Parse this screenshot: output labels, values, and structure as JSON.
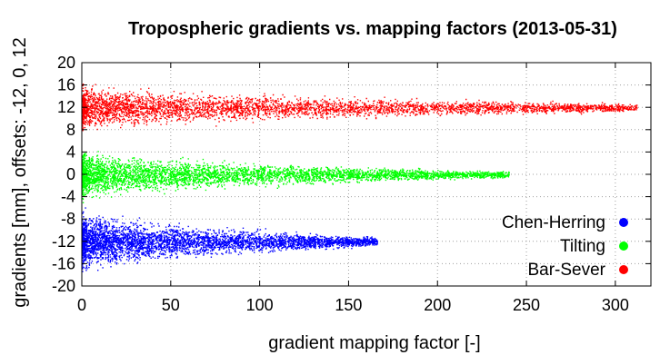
{
  "chart_data": {
    "type": "scatter",
    "title": "Tropospheric gradients vs. mapping factors (2013-05-31)",
    "xlabel": "gradient mapping factor [-]",
    "ylabel": "gradients [mm], offsets: -12, 0, 12",
    "xlim": [
      0,
      320
    ],
    "ylim": [
      -20,
      20
    ],
    "xticks": [
      "0",
      "50",
      "100",
      "150",
      "200",
      "250",
      "300"
    ],
    "yticks": [
      "20",
      "16",
      "12",
      "8",
      "4",
      "0",
      "-4",
      "-8",
      "-12",
      "-16",
      "-20"
    ],
    "grid": true,
    "legend_position": "bottom-right",
    "series": [
      {
        "name": "Chen-Herring",
        "color": "#0000ff",
        "offset": -12,
        "x_range": [
          0,
          166
        ],
        "spread_start": 5.5,
        "spread_end": 0.9
      },
      {
        "name": "Tilting",
        "color": "#00ff00",
        "offset": 0,
        "x_range": [
          0,
          240
        ],
        "spread_start": 4.6,
        "spread_end": 0.6
      },
      {
        "name": "Bar-Sever",
        "color": "#ff0000",
        "offset": 12,
        "x_range": [
          0,
          312
        ],
        "spread_start": 4.2,
        "spread_end": 0.7
      }
    ]
  }
}
